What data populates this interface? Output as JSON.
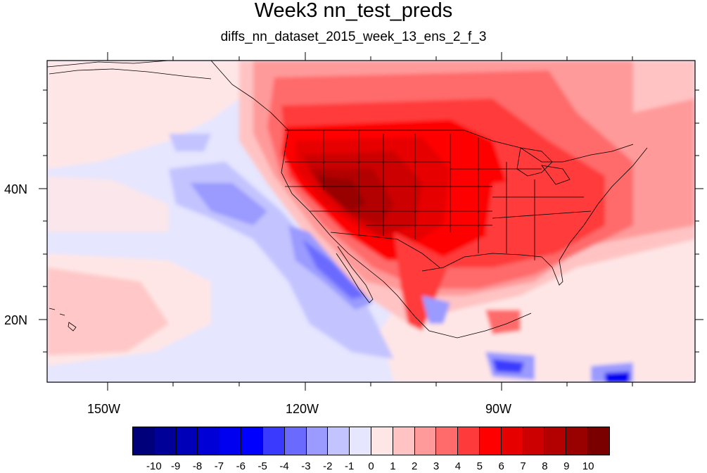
{
  "title": "Week3 nn_test_preds",
  "subtitle": "diffs_nn_dataset_2015_week_13_ens_2_f_3",
  "axes": {
    "lon_labels": [
      "150W",
      "120W",
      "90W"
    ],
    "lat_labels": [
      "40N",
      "20N"
    ]
  },
  "colorbar": {
    "labels": [
      "-10",
      "-9",
      "-8",
      "-7",
      "-6",
      "-5",
      "-4",
      "-3",
      "-2",
      "-1",
      "0",
      "1",
      "2",
      "3",
      "4",
      "5",
      "6",
      "7",
      "8",
      "9",
      "10"
    ],
    "colors": [
      "#00007a",
      "#000099",
      "#0000b8",
      "#0000d6",
      "#0000f0",
      "#0000ff",
      "#3a3aff",
      "#6a6aff",
      "#9a9aff",
      "#c3c3ff",
      "#e6e6ff",
      "#ffe6e6",
      "#ffc3c3",
      "#ff9a9a",
      "#ff6a6a",
      "#ff3a3a",
      "#ff0000",
      "#e60000",
      "#cc0000",
      "#b30000",
      "#990000",
      "#7a0000"
    ]
  }
}
